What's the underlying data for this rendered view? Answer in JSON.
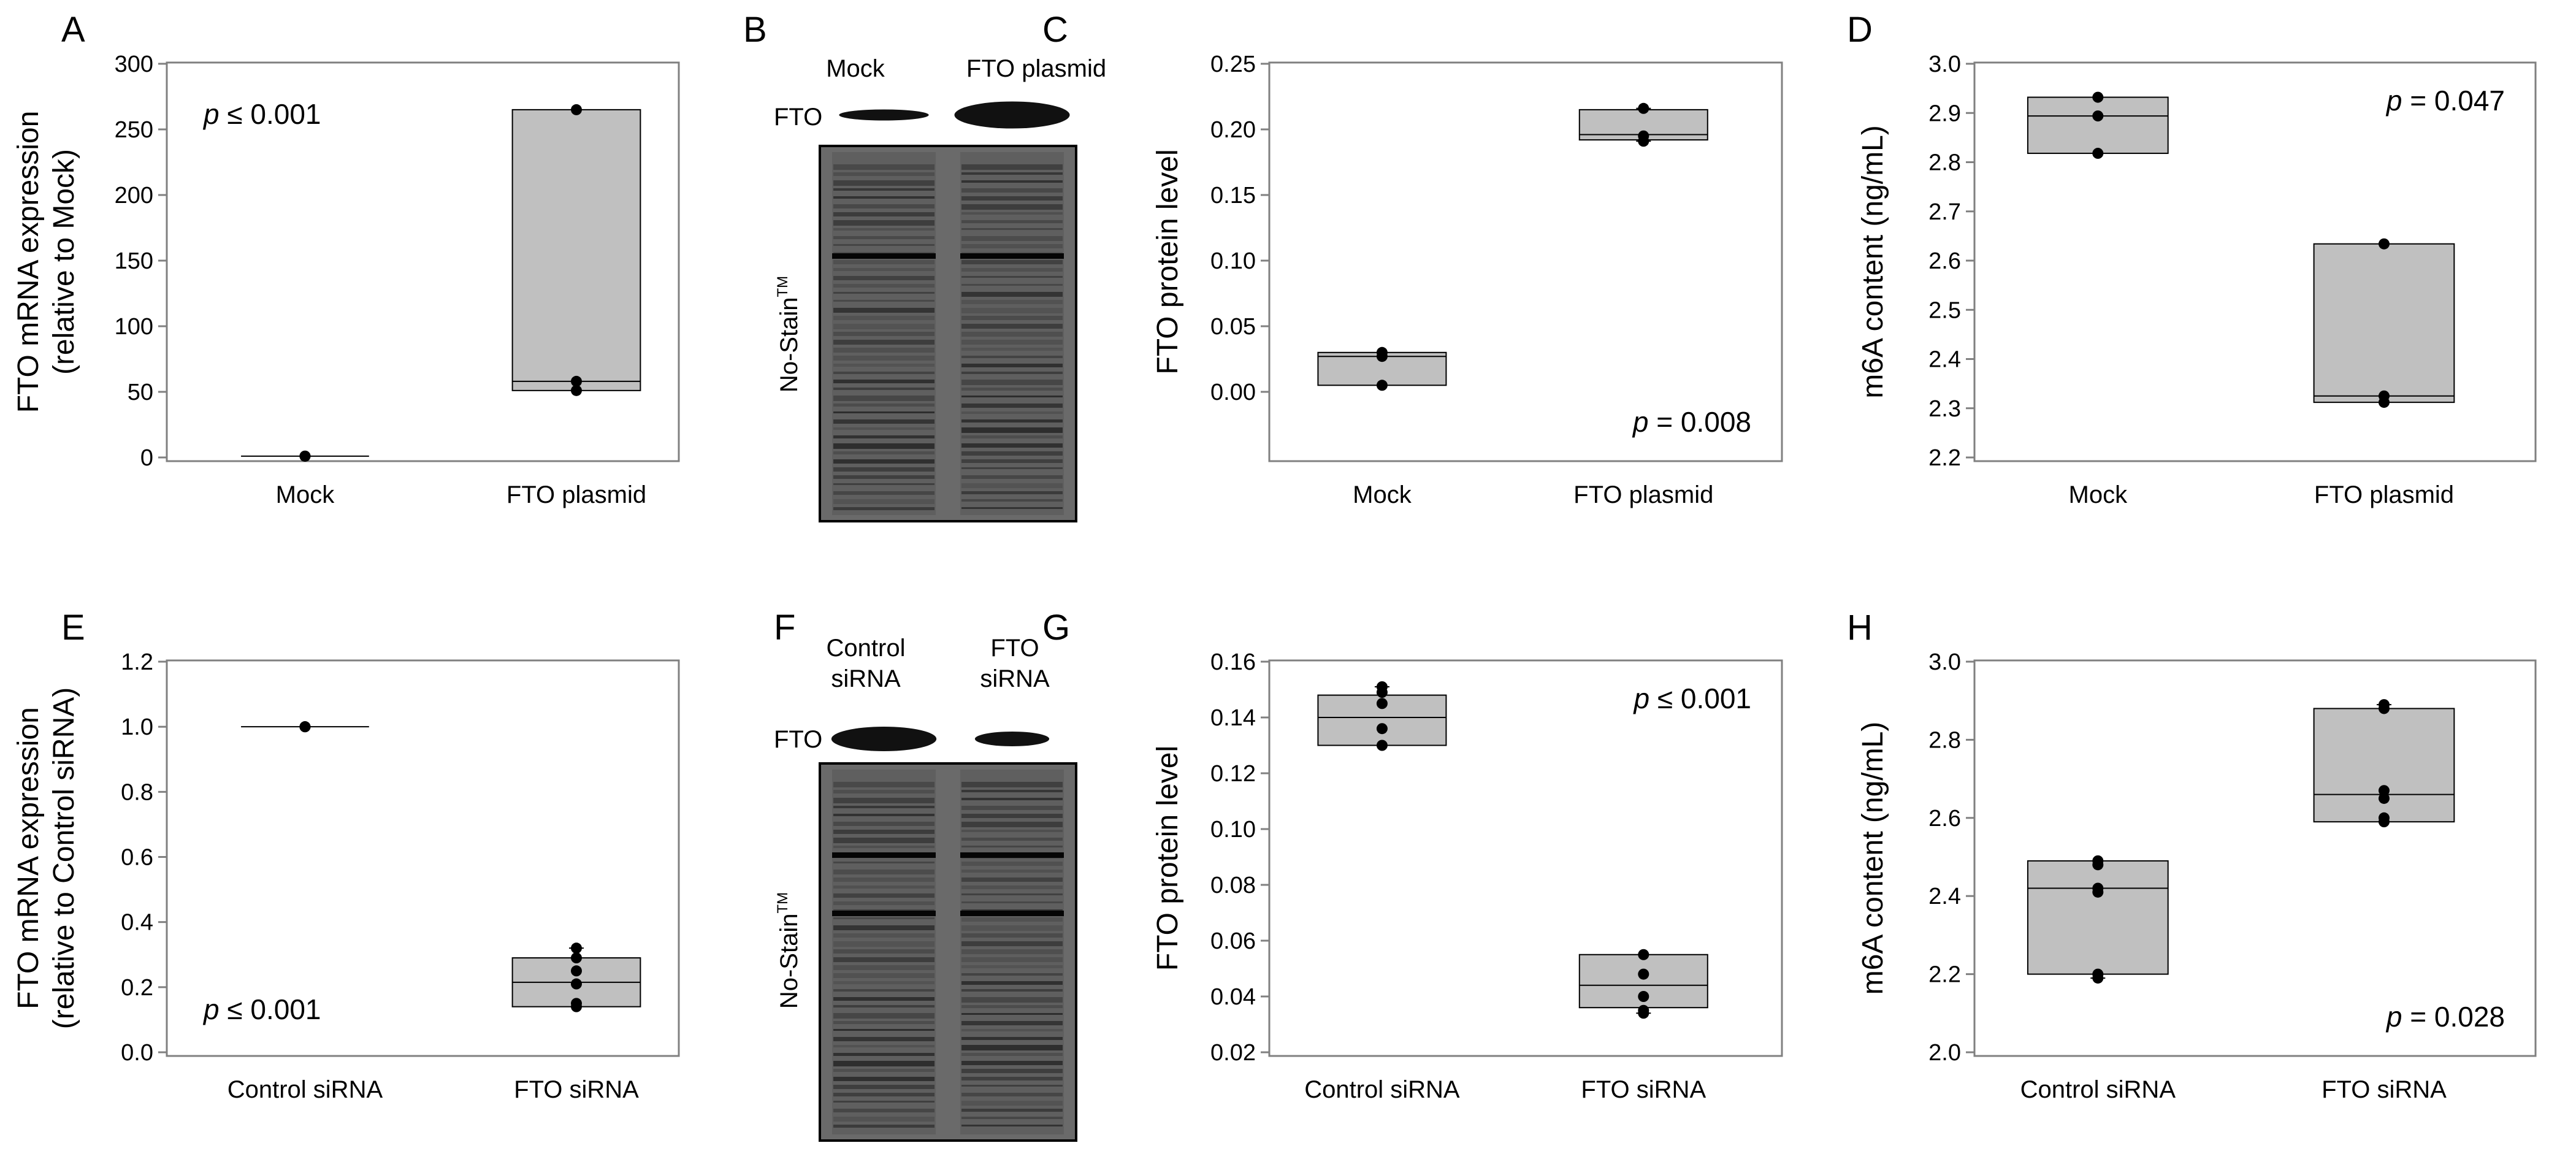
{
  "chart_data": [
    {
      "panel": "A",
      "type": "box",
      "ylabel": "FTO mRNA expression",
      "ylabel2": "(relative to Mock)",
      "ylim": [
        0,
        300
      ],
      "yticks": [
        "0",
        "50",
        "100",
        "150",
        "200",
        "250",
        "300"
      ],
      "annotation_italic": "p",
      "annotation_rest": " ≤ 0.001",
      "annotation_pos": "top-left",
      "categories": [
        "Mock",
        "FTO plasmid"
      ],
      "groups": [
        {
          "points": [
            1,
            1,
            1
          ],
          "min": 1,
          "q1": 1,
          "median": 1,
          "q3": 1,
          "max": 1
        },
        {
          "points": [
            265,
            58,
            51
          ],
          "min": 51,
          "q1": 51,
          "median": 58,
          "q3": 265,
          "max": 265
        }
      ]
    },
    {
      "panel": "C",
      "type": "box",
      "ylabel": "FTO protein level",
      "ylabel2": "",
      "ylim": [
        -0.05,
        0.25
      ],
      "yticks": [
        "0.00",
        "0.05",
        "0.10",
        "0.15",
        "0.20",
        "0.25"
      ],
      "annotation_italic": "p",
      "annotation_rest": " = 0.008",
      "annotation_pos": "bottom-right",
      "categories": [
        "Mock",
        "FTO plasmid"
      ],
      "groups": [
        {
          "points": [
            0.03,
            0.027,
            0.005
          ],
          "min": 0.005,
          "q1": 0.005,
          "median": 0.027,
          "q3": 0.03,
          "max": 0.03
        },
        {
          "points": [
            0.216,
            0.195,
            0.191
          ],
          "min": 0.191,
          "q1": 0.192,
          "median": 0.196,
          "q3": 0.215,
          "max": 0.216
        }
      ]
    },
    {
      "panel": "D",
      "type": "box",
      "ylabel": "m6A content (ng/mL)",
      "ylabel2": "",
      "ylim": [
        2.2,
        3.0
      ],
      "yticks": [
        "2.2",
        "2.3",
        "2.4",
        "2.5",
        "2.6",
        "2.7",
        "2.8",
        "2.9",
        "3.0"
      ],
      "annotation_italic": "p",
      "annotation_rest": " = 0.047",
      "annotation_pos": "top-right",
      "categories": [
        "Mock",
        "FTO plasmid"
      ],
      "groups": [
        {
          "points": [
            2.932,
            2.894,
            2.818
          ],
          "min": 2.818,
          "q1": 2.818,
          "median": 2.894,
          "q3": 2.932,
          "max": 2.932
        },
        {
          "points": [
            2.634,
            2.325,
            2.312
          ],
          "min": 2.312,
          "q1": 2.312,
          "median": 2.325,
          "q3": 2.634,
          "max": 2.634
        }
      ]
    },
    {
      "panel": "E",
      "type": "box",
      "ylabel": "FTO mRNA expression",
      "ylabel2": "(relative to Control siRNA)",
      "ylim": [
        0,
        1.2
      ],
      "yticks": [
        "0.0",
        "0.2",
        "0.4",
        "0.6",
        "0.8",
        "1.0",
        "1.2"
      ],
      "annotation_italic": "p",
      "annotation_rest": " ≤ 0.001",
      "annotation_pos": "bottom-left",
      "categories": [
        "Control siRNA",
        "FTO siRNA"
      ],
      "groups": [
        {
          "points": [
            1.0,
            1.0,
            1.0
          ],
          "min": 1.0,
          "q1": 1.0,
          "median": 1.0,
          "q3": 1.0,
          "max": 1.0
        },
        {
          "points": [
            0.32,
            0.29,
            0.25,
            0.21,
            0.15,
            0.14
          ],
          "min": 0.14,
          "q1": 0.14,
          "median": 0.215,
          "q3": 0.29,
          "max": 0.32
        }
      ]
    },
    {
      "panel": "G",
      "type": "box",
      "ylabel": "FTO protein level",
      "ylabel2": "",
      "ylim": [
        0.02,
        0.16
      ],
      "yticks": [
        "0.02",
        "0.04",
        "0.06",
        "0.08",
        "0.10",
        "0.12",
        "0.14",
        "0.16"
      ],
      "annotation_italic": "p",
      "annotation_rest": " ≤ 0.001",
      "annotation_pos": "top-right",
      "categories": [
        "Control siRNA",
        "FTO siRNA"
      ],
      "groups": [
        {
          "points": [
            0.151,
            0.149,
            0.145,
            0.136,
            0.13
          ],
          "min": 0.13,
          "q1": 0.13,
          "median": 0.14,
          "q3": 0.148,
          "max": 0.151
        },
        {
          "points": [
            0.055,
            0.048,
            0.04,
            0.035,
            0.034
          ],
          "min": 0.034,
          "q1": 0.036,
          "median": 0.044,
          "q3": 0.055,
          "max": 0.055
        }
      ]
    },
    {
      "panel": "H",
      "type": "box",
      "ylabel": "m6A content (ng/mL)",
      "ylabel2": "",
      "ylim": [
        2.0,
        3.0
      ],
      "yticks": [
        "2.0",
        "2.2",
        "2.4",
        "2.6",
        "2.8",
        "3.0"
      ],
      "annotation_italic": "p",
      "annotation_rest": " = 0.028",
      "annotation_pos": "bottom-right",
      "categories": [
        "Control siRNA",
        "FTO siRNA"
      ],
      "groups": [
        {
          "points": [
            2.49,
            2.48,
            2.42,
            2.41,
            2.2,
            2.19
          ],
          "min": 2.19,
          "q1": 2.2,
          "median": 2.42,
          "q3": 2.49,
          "max": 2.49
        },
        {
          "points": [
            2.89,
            2.88,
            2.67,
            2.65,
            2.6,
            2.59
          ],
          "min": 2.59,
          "q1": 2.59,
          "median": 2.66,
          "q3": 2.88,
          "max": 2.89
        }
      ]
    }
  ],
  "blots": [
    {
      "panel": "B",
      "lanes": [
        "Mock",
        "FTO plasmid"
      ],
      "band_label": "FTO",
      "stain_label": "No-Stain",
      "stain_sup": "TM"
    },
    {
      "panel": "F",
      "lanes": [
        "Control\nsiRNA",
        "FTO\nsiRNA"
      ],
      "band_label": "FTO",
      "stain_label": "No-Stain",
      "stain_sup": "TM"
    }
  ],
  "colors": {
    "box_fill": "#c0c0c0",
    "axis": "#808080",
    "frame": "#808080",
    "point": "#000000",
    "blot_bg": "#6a6a6a"
  }
}
